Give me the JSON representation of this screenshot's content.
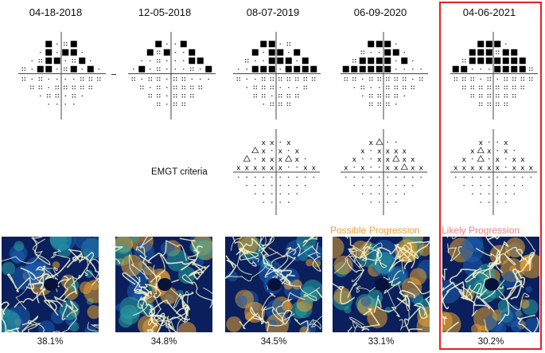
{
  "exams": [
    {
      "date": "04-18-2018",
      "perfusion": "38.1%",
      "progression": ""
    },
    {
      "date": "12-05-2018",
      "perfusion": "34.8%",
      "progression": ""
    },
    {
      "date": "08-07-2019",
      "perfusion": "34.5%",
      "progression": ""
    },
    {
      "date": "06-09-2020",
      "perfusion": "33.1%",
      "progression": "Possible Progression"
    },
    {
      "date": "04-06-2021",
      "perfusion": "30.2%",
      "progression": "Likely Progression"
    }
  ],
  "emgt_label": "EMGT criteria",
  "colors": {
    "highlight": "#e52020",
    "possible": "#f0a030",
    "likely": "#f08080"
  }
}
